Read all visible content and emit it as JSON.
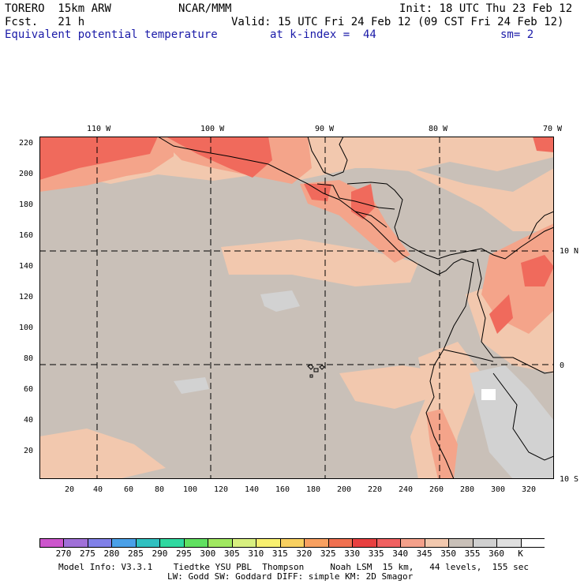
{
  "header": {
    "model": "TORERO  15km ARW",
    "org": "NCAR/MMM",
    "init": "Init: 18 UTC Thu 23 Feb 12",
    "fcst": "Fcst.   21 h",
    "valid": "Valid: 15 UTC Fri 24 Feb 12 (09 CST Fri 24 Feb 12)",
    "field": "Equivalent potential temperature",
    "level": "at k-index =  44",
    "smooth": "sm= 2"
  },
  "map": {
    "lon_labels": [
      "110 W",
      "100 W",
      "90 W",
      "80 W",
      "70 W"
    ],
    "lat_labels": [
      "10 N",
      "0",
      "10 S"
    ],
    "y_ticks": [
      "220",
      "200",
      "180",
      "160",
      "140",
      "120",
      "100",
      "80",
      "60",
      "40",
      "20"
    ],
    "x_ticks": [
      "20",
      "40",
      "60",
      "80",
      "100",
      "120",
      "140",
      "160",
      "180",
      "200",
      "220",
      "240",
      "260",
      "280",
      "300",
      "320"
    ],
    "colors": {
      "base": "#c9c0b8",
      "warm": "#f2c8ae",
      "warmer": "#f4a48a",
      "hot": "#f06a5c",
      "hottest": "#e8433e",
      "cool": "#d2d2d2"
    }
  },
  "colorbar": {
    "colors": [
      "#cc55cc",
      "#a070d8",
      "#8080e8",
      "#4aa0e8",
      "#30c0c0",
      "#30d8a0",
      "#60e060",
      "#a0e860",
      "#d8f080",
      "#f8f070",
      "#f8d060",
      "#f8a060",
      "#f07050",
      "#e84040",
      "#f06060",
      "#f4a08a",
      "#f2c8ae",
      "#c9c0b8",
      "#d0d0d0",
      "#e0e0e0",
      "#ffffff"
    ],
    "labels": [
      "270",
      "275",
      "280",
      "285",
      "290",
      "295",
      "300",
      "305",
      "310",
      "315",
      "320",
      "325",
      "330",
      "335",
      "340",
      "345",
      "350",
      "355",
      "360",
      "K"
    ]
  },
  "footer": {
    "line1": "Model Info: V3.3.1    Tiedtke YSU PBL  Thompson     Noah LSM  15 km,   44 levels,  155 sec",
    "line2": "LW: Godd SW: Goddard DIFF: simple KM: 2D Smagor"
  }
}
